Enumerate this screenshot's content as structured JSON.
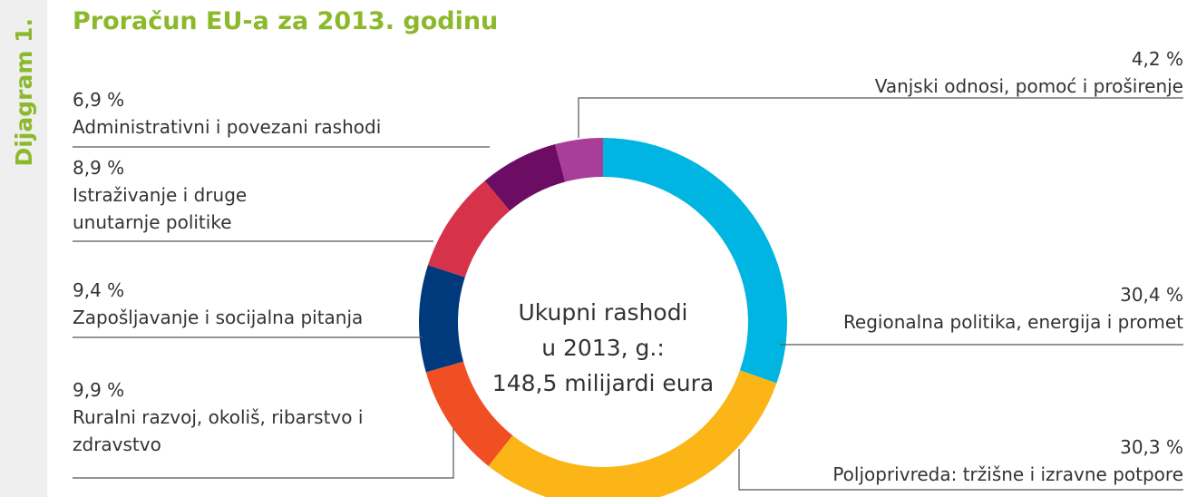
{
  "chart_data": {
    "type": "donut",
    "side_label": "Dijagram 1.",
    "title": "Proračun EU-a za 2013. godinu",
    "center_text": [
      "Ukupni rashodi",
      "u 2013, g.:",
      "148,5 milijardi eura"
    ],
    "categories": [
      "Regionalna politika, energija i promet",
      "Poljoprivreda: tržišne i izravne potpore",
      "Ruralni razvoj, okoliš, ribarstvo i zdravstvo",
      "Zapošljavanje i socijalna pitanja",
      "Istraživanje i druge unutarnje politike",
      "Administrativni i povezani rashodi",
      "Vanjski odnosi, pomoć i proširenje"
    ],
    "values": [
      30.4,
      30.3,
      9.9,
      9.4,
      8.9,
      6.9,
      4.2
    ],
    "value_labels": [
      "30,4 %",
      "30,3 %",
      "9,9 %",
      "9,4 %",
      "8,9 %",
      "6,9 %",
      "4,2 %"
    ],
    "colors": [
      "#00b5e2",
      "#fbb516",
      "#f04e23",
      "#003a7d",
      "#d6334a",
      "#6d0c63",
      "#a83e97"
    ]
  }
}
